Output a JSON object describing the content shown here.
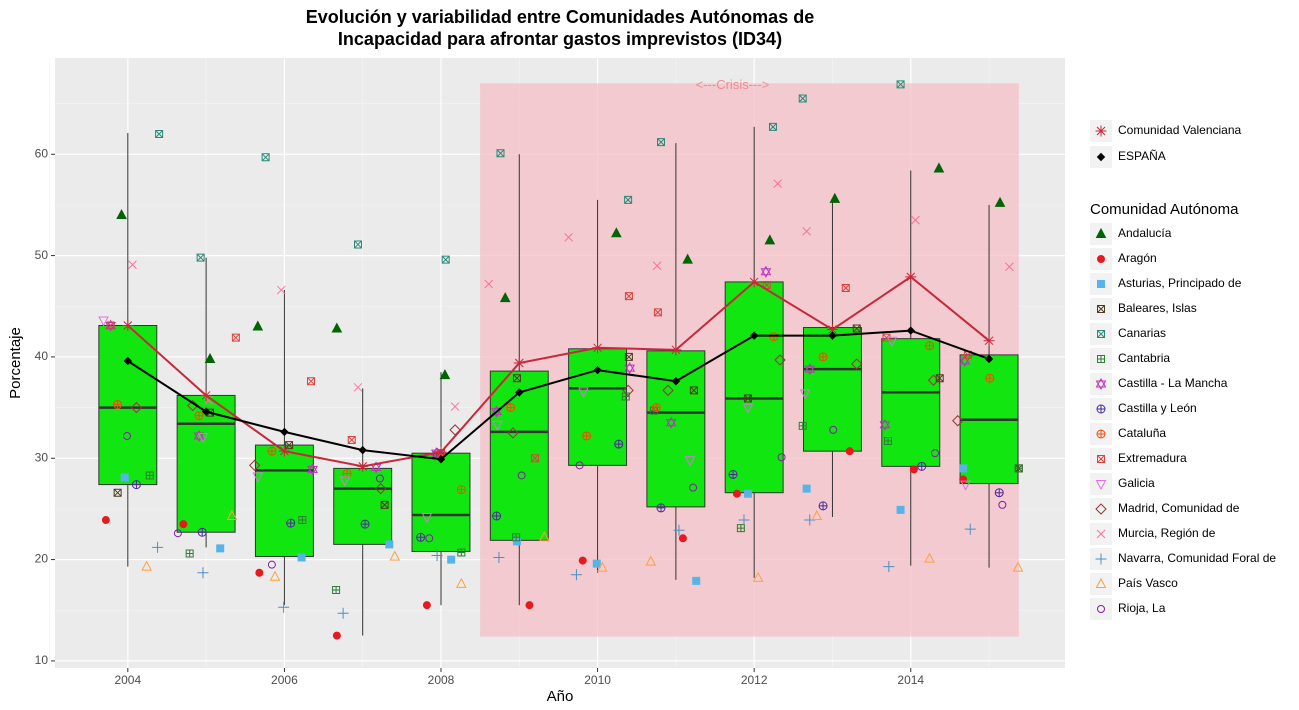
{
  "chart_data": {
    "type": "box",
    "title": [
      "Evolución y variabilidad entre Comunidades Autónomas de",
      "Incapacidad para afrontar gastos imprevistos (ID34)"
    ],
    "x_label": "Año",
    "y_label": "Porcentaje",
    "xlim": [
      2003.07,
      2015.97
    ],
    "ylim": [
      9.3,
      69.5
    ],
    "xticks": [
      2004,
      2006,
      2008,
      2010,
      2012,
      2014
    ],
    "yticks": [
      10,
      20,
      30,
      40,
      50,
      60
    ],
    "xminor": [
      2003,
      2005,
      2007,
      2009,
      2011,
      2013,
      2015
    ],
    "yminor": [
      15,
      25,
      35,
      45,
      55,
      65
    ],
    "grid": true,
    "crisis": {
      "label": "<---Crisis--->",
      "xlim": [
        2008.5,
        2015.38
      ],
      "ylim": [
        12.4,
        67.0
      ],
      "color": "#f4bfc5"
    },
    "boxes": {
      "color": "#11e611",
      "x": [
        2004,
        2005,
        2006,
        2007,
        2008,
        2009,
        2010,
        2011,
        2012,
        2013,
        2014,
        2015
      ],
      "low": [
        19.3,
        21.2,
        15.5,
        12.5,
        15.5,
        15.5,
        18.7,
        18.0,
        18.2,
        24.2,
        19.4,
        19.2
      ],
      "q1": [
        27.4,
        22.7,
        20.3,
        21.5,
        20.8,
        21.9,
        29.3,
        25.2,
        26.6,
        30.7,
        29.2,
        27.5
      ],
      "median": [
        35.0,
        33.4,
        28.8,
        27.0,
        24.4,
        32.6,
        36.9,
        34.5,
        35.9,
        38.8,
        36.5,
        33.8
      ],
      "q3": [
        43.1,
        36.2,
        31.3,
        29.0,
        30.5,
        38.6,
        40.8,
        40.6,
        47.4,
        42.9,
        41.8,
        40.2
      ],
      "high": [
        62.1,
        49.8,
        46.6,
        36.9,
        38.5,
        60.0,
        55.5,
        61.1,
        62.7,
        55.5,
        58.4,
        55.0
      ]
    },
    "lines": [
      {
        "name": "Comunidad Valenciana",
        "color": "#c8283a",
        "shape": "asterisk",
        "x": [
          2004,
          2005,
          2006,
          2007,
          2008,
          2009,
          2010,
          2011,
          2012,
          2013,
          2014,
          2015
        ],
        "values": [
          43.1,
          36.2,
          30.7,
          29.2,
          30.6,
          39.4,
          40.9,
          40.7,
          47.4,
          42.7,
          47.9,
          41.6
        ]
      },
      {
        "name": "ESPAÑA",
        "color": "#000000",
        "shape": "diamond-filled",
        "x": [
          2004,
          2005,
          2006,
          2007,
          2008,
          2009,
          2010,
          2011,
          2012,
          2013,
          2014,
          2015
        ],
        "values": [
          39.6,
          34.6,
          32.6,
          30.8,
          29.9,
          36.5,
          38.7,
          37.6,
          42.1,
          42.1,
          42.6,
          39.8
        ]
      }
    ],
    "legend_title": "Comunidad Autónoma",
    "series": [
      {
        "name": "Andalucía",
        "color": "#006400",
        "shape": "triangle",
        "x": [
          2003.92,
          2005.05,
          2005.66,
          2006.67,
          2008.05,
          2008.82,
          2010.24,
          2011.15,
          2012.2,
          2013.03,
          2014.36,
          2015.14
        ],
        "values": [
          54.0,
          39.8,
          43.0,
          42.8,
          38.2,
          45.8,
          52.2,
          49.6,
          51.5,
          55.6,
          58.6,
          55.2
        ]
      },
      {
        "name": "Aragón",
        "color": "#e41a1c",
        "shape": "circle",
        "x": [
          2003.72,
          2004.71,
          2005.68,
          2006.67,
          2007.82,
          2009.13,
          2009.81,
          2011.09,
          2011.78,
          2013.22,
          2014.04,
          2014.67
        ],
        "values": [
          23.9,
          23.5,
          18.7,
          12.5,
          15.5,
          15.5,
          19.9,
          22.1,
          26.5,
          30.7,
          28.9,
          27.9
        ]
      },
      {
        "name": "Asturias, Principado de",
        "color": "#56b4e9",
        "shape": "square",
        "x": [
          2003.96,
          2005.18,
          2006.22,
          2007.34,
          2008.13,
          2008.97,
          2009.99,
          2011.26,
          2011.92,
          2012.67,
          2013.87,
          2014.67
        ],
        "values": [
          28.1,
          21.1,
          20.2,
          21.5,
          20.0,
          21.8,
          19.6,
          17.9,
          26.5,
          27.0,
          24.9,
          29.0
        ]
      },
      {
        "name": "Baleares, Islas",
        "color": "#4d3b1f",
        "shape": "square-x",
        "x": [
          2003.87,
          2005.05,
          2006.06,
          2007.28,
          2007.95,
          2008.97,
          2010.4,
          2011.23,
          2011.92,
          2013.31,
          2014.37,
          2015.38
        ],
        "values": [
          26.6,
          34.5,
          31.3,
          25.4,
          30.3,
          37.9,
          40.0,
          36.7,
          35.9,
          42.8,
          37.9,
          29.0
        ]
      },
      {
        "name": "Canarias",
        "color": "#2a8a7a",
        "shape": "square-x",
        "x": [
          2004.4,
          2004.93,
          2005.76,
          2006.94,
          2008.06,
          2008.76,
          2010.39,
          2010.81,
          2012.24,
          2012.62,
          2013.87,
          null
        ],
        "values": [
          62.0,
          49.8,
          59.7,
          51.1,
          49.6,
          60.1,
          55.5,
          61.2,
          62.7,
          65.5,
          66.9,
          null
        ]
      },
      {
        "name": "Cantabria",
        "color": "#2e7d32",
        "shape": "square-plus",
        "x": [
          2004.28,
          2004.79,
          2006.23,
          2006.66,
          2008.26,
          2008.96,
          2010.36,
          2010.72,
          2011.83,
          2012.62,
          2013.71,
          2015.38
        ],
        "values": [
          28.3,
          20.6,
          23.9,
          17.0,
          20.7,
          22.2,
          36.1,
          34.7,
          23.1,
          33.2,
          31.7,
          29.0
        ]
      },
      {
        "name": "Castilla - La Mancha",
        "color": "#c030c0",
        "shape": "star-of-david",
        "x": [
          2003.78,
          2004.91,
          2006.36,
          2007.17,
          2007.94,
          2008.71,
          2010.41,
          2010.94,
          2012.15,
          2012.71,
          2013.67,
          2014.69
        ],
        "values": [
          43.1,
          32.2,
          28.9,
          29.1,
          30.5,
          34.6,
          38.9,
          33.5,
          48.4,
          38.8,
          33.3,
          39.6
        ]
      },
      {
        "name": "Castilla y León",
        "color": "#4b2a9a",
        "shape": "circle-plus",
        "x": [
          2004.11,
          2004.95,
          2006.08,
          2007.03,
          2007.74,
          2008.71,
          2010.27,
          2010.81,
          2011.73,
          2012.88,
          2014.14,
          2015.13
        ],
        "values": [
          27.4,
          22.7,
          23.6,
          23.5,
          22.2,
          24.3,
          31.4,
          25.1,
          28.4,
          25.3,
          29.2,
          26.6
        ]
      },
      {
        "name": "Cataluña",
        "color": "#ff4500",
        "shape": "circle-plus",
        "x": [
          2003.87,
          2004.91,
          2005.84,
          2006.8,
          2008.26,
          2008.89,
          2009.86,
          2010.75,
          2012.25,
          2012.88,
          2014.24,
          2015.01
        ],
        "values": [
          35.3,
          34.2,
          30.7,
          28.5,
          26.9,
          35.0,
          32.2,
          35.0,
          42.0,
          40.0,
          41.1,
          37.9
        ]
      },
      {
        "name": "Extremadura",
        "color": "#e0403c",
        "shape": "square-x",
        "x": [
          2003.78,
          2005.38,
          2006.34,
          2006.86,
          2008.0,
          2009.2,
          2010.4,
          2010.77,
          2012.16,
          2013.17,
          2013.69,
          2014.73
        ],
        "values": [
          43.1,
          41.9,
          37.6,
          31.8,
          30.5,
          30.0,
          46.0,
          44.4,
          47.1,
          46.8,
          41.9,
          40.2
        ]
      },
      {
        "name": "Galicia",
        "color": "#e070e0",
        "shape": "triangle-down",
        "x": [
          2003.69,
          2004.96,
          2005.66,
          2006.77,
          2007.82,
          2008.72,
          2009.82,
          2011.18,
          2011.92,
          2012.65,
          2013.76,
          2014.7
        ],
        "values": [
          43.6,
          32.1,
          28.2,
          27.8,
          24.2,
          33.3,
          36.6,
          29.8,
          35.0,
          36.4,
          41.6,
          27.4
        ]
      },
      {
        "name": "Madrid, Comunidad de",
        "color": "#8b3a3a",
        "shape": "diamond",
        "x": [
          2004.11,
          2004.83,
          2005.62,
          2007.23,
          2008.18,
          2008.92,
          2010.39,
          2010.9,
          2012.33,
          2013.31,
          2014.29,
          2014.6
        ],
        "values": [
          35.0,
          35.2,
          29.3,
          27.0,
          32.8,
          32.5,
          36.7,
          36.7,
          39.7,
          39.3,
          37.7,
          33.7
        ]
      },
      {
        "name": "Murcia, Región de",
        "color": "#ff6fa0",
        "shape": "x",
        "x": [
          2004.06,
          2005.03,
          2005.96,
          2006.94,
          2008.18,
          2008.61,
          2009.63,
          2010.76,
          2012.3,
          2012.67,
          2014.06,
          2015.26
        ],
        "values": [
          49.1,
          35.7,
          46.6,
          37.0,
          35.1,
          47.2,
          51.8,
          49.0,
          57.1,
          52.4,
          53.5,
          48.9
        ]
      },
      {
        "name": "Navarra, Comunidad Foral de",
        "color": "#4a90c8",
        "shape": "plus",
        "x": [
          2004.38,
          2004.96,
          2005.99,
          2006.75,
          2007.95,
          2008.74,
          2009.73,
          2011.04,
          2011.87,
          2012.71,
          2013.72,
          2014.76
        ],
        "values": [
          21.2,
          18.7,
          15.3,
          14.7,
          20.4,
          20.2,
          18.5,
          22.9,
          23.9,
          23.9,
          19.3,
          23.0
        ]
      },
      {
        "name": "País Vasco",
        "color": "#ff9f3f",
        "shape": "triangle-open",
        "x": [
          2004.24,
          2005.33,
          2005.88,
          2007.41,
          2008.26,
          2009.32,
          2010.06,
          2010.68,
          2012.05,
          2012.8,
          2014.24,
          2015.37
        ],
        "values": [
          19.3,
          24.3,
          18.3,
          20.3,
          17.6,
          22.2,
          19.2,
          19.8,
          18.2,
          24.3,
          20.1,
          19.2
        ]
      },
      {
        "name": "Rioja, La",
        "color": "#8020a0",
        "shape": "circle-open",
        "x": [
          2003.99,
          2004.64,
          2005.84,
          2007.22,
          2007.85,
          2009.03,
          2009.77,
          2011.22,
          2012.35,
          2013.01,
          2014.31,
          2015.17
        ],
        "values": [
          32.2,
          22.6,
          19.5,
          28.0,
          22.1,
          28.3,
          29.3,
          27.1,
          30.1,
          32.8,
          30.5,
          25.4
        ]
      }
    ]
  }
}
